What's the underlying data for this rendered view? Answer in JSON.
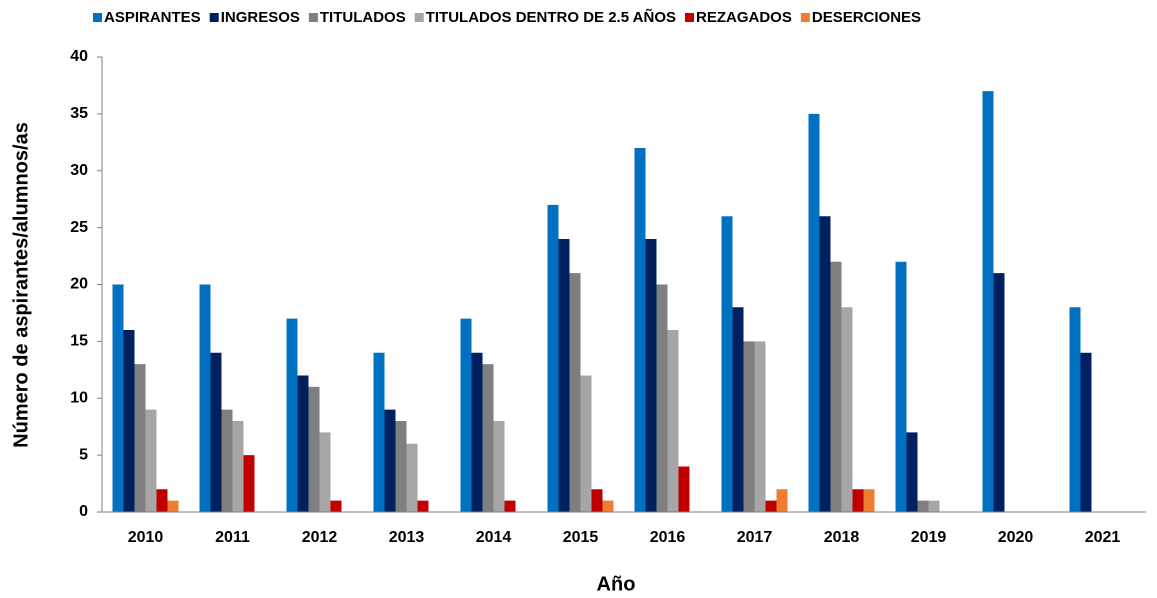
{
  "chart_data": {
    "type": "bar",
    "x_label": "Año",
    "y_label": "Número de aspirantes/alumnos/as",
    "categories": [
      "2010",
      "2011",
      "2012",
      "2013",
      "2014",
      "2015",
      "2016",
      "2017",
      "2018",
      "2019",
      "2020",
      "2021"
    ],
    "series": [
      {
        "name": "ASPIRANTES",
        "color": "#0070c0",
        "values": [
          20,
          20,
          17,
          14,
          17,
          27,
          32,
          26,
          35,
          22,
          37,
          18
        ]
      },
      {
        "name": "INGRESOS",
        "color": "#002060",
        "values": [
          16,
          14,
          12,
          9,
          14,
          24,
          24,
          18,
          26,
          7,
          21,
          14
        ]
      },
      {
        "name": "TITULADOS",
        "color": "#7f7f7f",
        "values": [
          13,
          9,
          11,
          8,
          13,
          21,
          20,
          15,
          22,
          1,
          null,
          null
        ]
      },
      {
        "name": "TITULADOS DENTRO DE 2.5 AÑOS",
        "color": "#a6a6a6",
        "values": [
          9,
          8,
          7,
          6,
          8,
          12,
          16,
          15,
          18,
          1,
          null,
          null
        ]
      },
      {
        "name": "REZAGADOS",
        "color": "#c00000",
        "values": [
          2,
          5,
          1,
          1,
          1,
          2,
          4,
          1,
          2,
          null,
          null,
          null
        ]
      },
      {
        "name": "DESERCIONES",
        "color": "#ed7d31",
        "values": [
          1,
          null,
          null,
          null,
          null,
          1,
          null,
          2,
          2,
          null,
          null,
          null
        ]
      }
    ],
    "ylim": [
      0,
      40
    ],
    "yticks": [
      0,
      5,
      10,
      15,
      20,
      25,
      30,
      35,
      40
    ],
    "grid": false,
    "legend": "top"
  }
}
